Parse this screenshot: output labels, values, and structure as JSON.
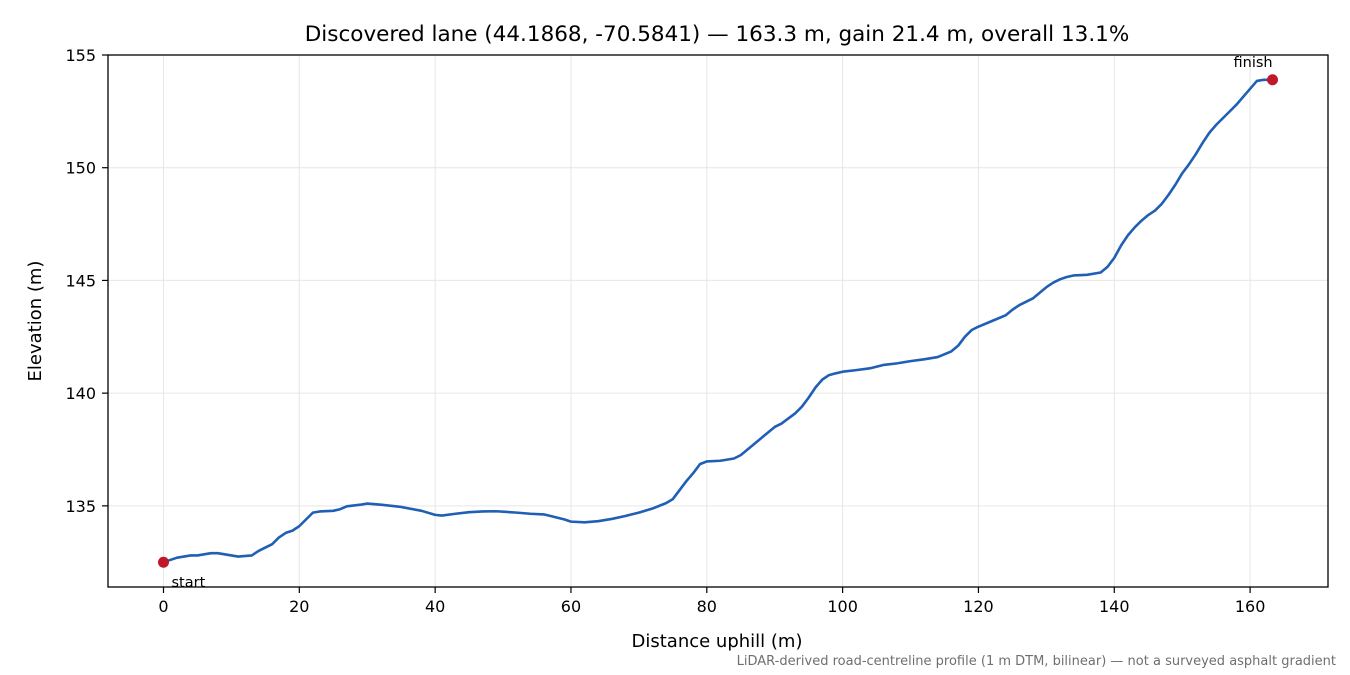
{
  "chart_data": {
    "type": "line",
    "title": "Discovered lane (44.1868, -70.5841) — 163.3 m, gain 21.4 m, overall 13.1%",
    "xlabel": "Distance uphill (m)",
    "ylabel": "Elevation (m)",
    "xlim": [
      -8.17,
      171.47
    ],
    "ylim": [
      131.4,
      155
    ],
    "xticks": [
      0,
      20,
      40,
      60,
      80,
      100,
      120,
      140,
      160
    ],
    "yticks": [
      135,
      140,
      145,
      150,
      155
    ],
    "grid": true,
    "line_color": "#1f5fb5",
    "marker_color": "#c0182a",
    "series": [
      {
        "x": [
          0,
          2,
          4,
          5,
          7,
          8,
          10,
          11,
          13,
          14,
          16,
          17,
          18,
          19,
          20,
          21,
          22,
          23,
          25,
          26,
          27,
          29,
          30,
          32,
          35,
          38,
          40,
          41,
          43,
          45,
          47,
          49,
          51,
          52,
          54,
          56,
          57,
          59,
          60,
          62,
          64,
          66,
          68,
          70,
          72,
          74,
          75,
          76,
          77,
          78,
          79,
          80,
          82,
          84,
          85,
          86,
          88,
          90,
          91,
          93,
          94,
          95,
          96,
          97,
          98,
          99,
          100,
          102,
          104,
          106,
          108,
          110,
          112,
          114,
          116,
          117,
          118,
          119,
          120,
          122,
          124,
          125,
          126,
          128,
          129,
          130,
          131,
          132,
          133,
          134,
          136,
          138,
          139,
          140,
          141,
          142,
          143,
          144,
          145,
          146,
          147,
          148,
          149,
          150,
          151,
          152,
          153,
          154,
          155,
          156,
          157,
          158,
          159,
          160,
          161,
          162,
          163.3
        ],
        "y": [
          132.5,
          132.7,
          132.8,
          132.8,
          132.9,
          132.9,
          132.8,
          132.75,
          132.8,
          133.0,
          133.3,
          133.6,
          133.8,
          133.9,
          134.1,
          134.4,
          134.7,
          134.75,
          134.78,
          134.85,
          134.98,
          135.05,
          135.1,
          135.05,
          134.95,
          134.78,
          134.6,
          134.57,
          134.65,
          134.72,
          134.75,
          134.76,
          134.72,
          134.7,
          134.65,
          134.62,
          134.55,
          134.4,
          134.3,
          134.27,
          134.32,
          134.42,
          134.55,
          134.7,
          134.88,
          135.12,
          135.3,
          135.7,
          136.1,
          136.45,
          136.85,
          136.97,
          137.0,
          137.1,
          137.25,
          137.5,
          138.0,
          138.5,
          138.65,
          139.1,
          139.4,
          139.8,
          140.25,
          140.6,
          140.8,
          140.88,
          140.95,
          141.02,
          141.1,
          141.25,
          141.32,
          141.42,
          141.5,
          141.6,
          141.85,
          142.1,
          142.5,
          142.8,
          142.95,
          143.2,
          143.45,
          143.7,
          143.9,
          144.2,
          144.45,
          144.7,
          144.9,
          145.05,
          145.15,
          145.22,
          145.25,
          145.35,
          145.6,
          146.0,
          146.55,
          147.0,
          147.35,
          147.65,
          147.9,
          148.1,
          148.4,
          148.8,
          149.25,
          149.75,
          150.15,
          150.6,
          151.1,
          151.55,
          151.9,
          152.2,
          152.5,
          152.8,
          153.15,
          153.5,
          153.85,
          153.9,
          153.9
        ]
      }
    ],
    "annotations": [
      {
        "label": "start",
        "x": 0,
        "y": 132.5
      },
      {
        "label": "finish",
        "x": 163.3,
        "y": 153.9
      }
    ]
  },
  "footnote": "LiDAR-derived road-centreline profile (1 m DTM, bilinear) — not a surveyed asphalt gradient"
}
